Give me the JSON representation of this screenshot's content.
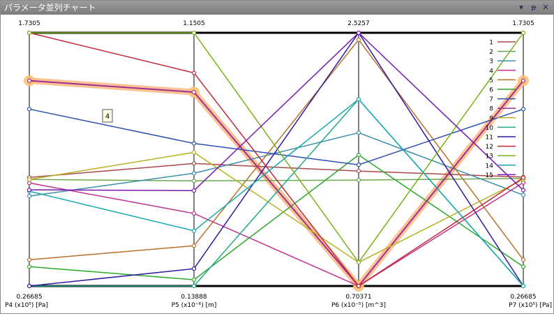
{
  "window": {
    "title": "パラメータ並列チャート",
    "dropdown_icon": "chevron-down-icon",
    "pin_icon": "pin-icon",
    "close_icon": "close-icon"
  },
  "chart_data": {
    "type": "parallel-coordinates",
    "axes": [
      {
        "label": "P4 (x10⁵) [Pa]",
        "max_label": "1.7305",
        "min_label": "0.26685",
        "range": [
          0.26685,
          1.7305
        ]
      },
      {
        "label": "P5 (x10⁻⁶) [m]",
        "max_label": "1.1505",
        "min_label": "0.13888",
        "range": [
          0.13888,
          1.1505
        ]
      },
      {
        "label": "P6 (x10⁻⁵) [m^3]",
        "max_label": "2.5257",
        "min_label": "0.70371",
        "range": [
          0.70371,
          2.5257
        ]
      },
      {
        "label": "P7 (x10⁵) [Pa]",
        "max_label": "1.7305",
        "min_label": "0.26685",
        "range": [
          0.26685,
          1.7305
        ]
      }
    ],
    "series": [
      {
        "name": "1",
        "color": "#a84848",
        "values": [
          0.8946,
          0.6283,
          1.5309,
          0.8966
        ]
      },
      {
        "name": "2",
        "color": "#6aa84f",
        "values": [
          0.8826,
          0.5589,
          1.4657,
          0.8886
        ]
      },
      {
        "name": "3",
        "color": "#3a8faa",
        "values": [
          0.7866,
          0.5894,
          1.8067,
          0.7929
        ]
      },
      {
        "name": "4",
        "color": "#c03090",
        "values": [
          0.8626,
          0.4286,
          0.7037,
          0.8646
        ]
      },
      {
        "name": "5",
        "color": "#b8702c",
        "values": [
          0.4187,
          0.2997,
          2.4757,
          0.4187
        ]
      },
      {
        "name": "6",
        "color": "#2aa82a",
        "values": [
          0.3786,
          0.1639,
          1.6464,
          0.3786
        ]
      },
      {
        "name": "7",
        "color": "#2a50b0",
        "values": [
          1.2892,
          0.7085,
          1.5759,
          1.2892
        ]
      },
      {
        "name": "8",
        "color": "#a03090",
        "values": [
          1.4537,
          0.9134,
          0.7037,
          1.4537
        ]
      },
      {
        "name": "9",
        "color": "#b8b020",
        "values": [
          0.8826,
          0.6727,
          0.874,
          0.8826
        ]
      },
      {
        "name": "10",
        "color": "#20a888",
        "values": [
          0.2669,
          0.1389,
          2.0471,
          0.2669
        ]
      },
      {
        "name": "11",
        "color": "#3018a0",
        "values": [
          0.2669,
          0.208,
          2.5257,
          0.2669
        ]
      },
      {
        "name": "12",
        "color": "#c02838",
        "values": [
          1.7305,
          0.9902,
          0.7037,
          0.8927
        ]
      },
      {
        "name": "13",
        "color": "#78b018",
        "values": [
          1.7305,
          1.1505,
          0.874,
          1.7305
        ]
      },
      {
        "name": "14",
        "color": "#18a8b0",
        "values": [
          0.8146,
          0.3593,
          2.0471,
          0.2669
        ]
      },
      {
        "name": "15",
        "color": "#7818b0",
        "values": [
          0.8226,
          0.5201,
          2.5257,
          0.8206
        ]
      }
    ],
    "highlighted_series": "8",
    "tooltip": "4",
    "legend_position": "top-right",
    "grid": false
  }
}
